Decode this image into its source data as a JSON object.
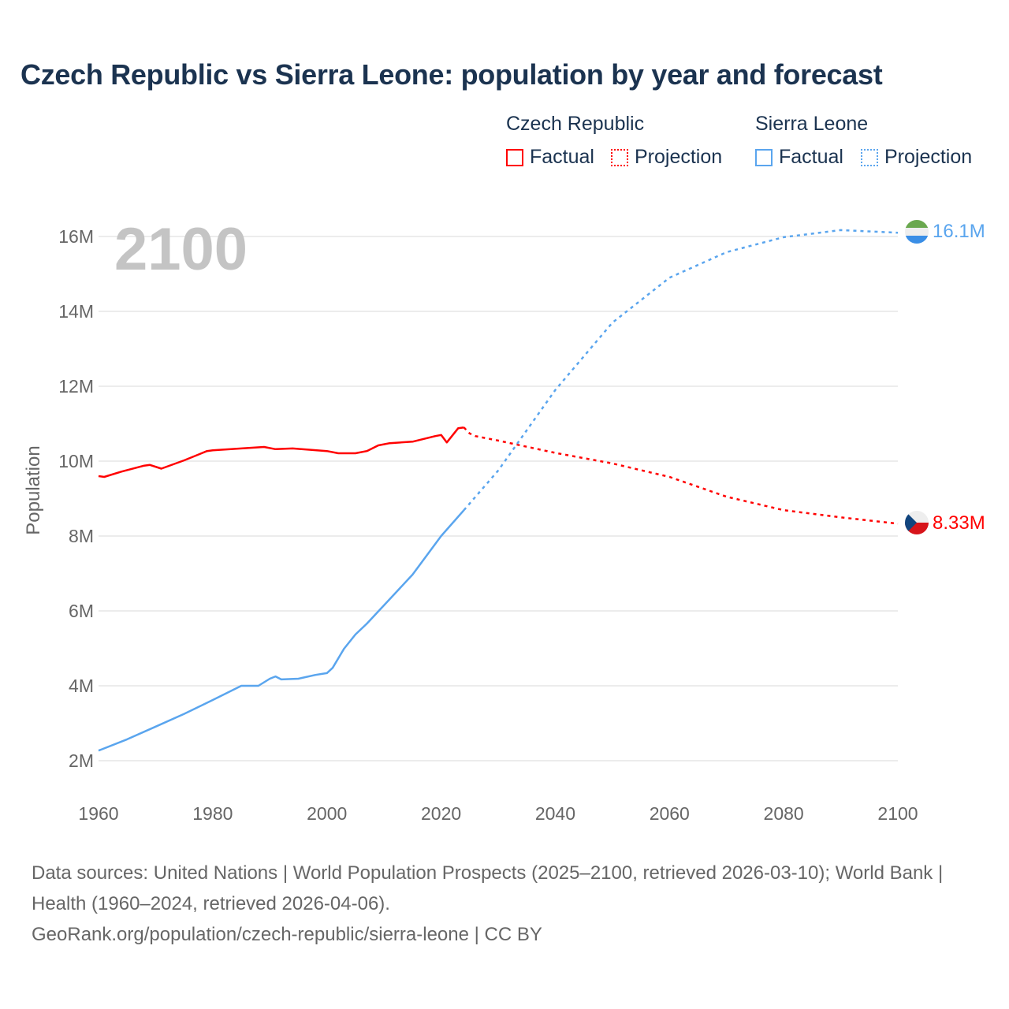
{
  "title": "Czech Republic vs Sierra Leone: population by year and forecast",
  "legend": {
    "groups": [
      {
        "name": "Czech Republic",
        "factual": "Factual",
        "projection": "Projection",
        "color": "#ff0000"
      },
      {
        "name": "Sierra Leone",
        "factual": "Factual",
        "projection": "Projection",
        "color": "#5aa5ee"
      }
    ]
  },
  "year_watermark": "2100",
  "footer": {
    "sources": "Data sources: United Nations | World Population Prospects (2025–2100, retrieved 2026-03-10); World Bank | Health (1960–2024, retrieved 2026-04-06).",
    "link": "GeoRank.org/population/czech-republic/sierra-leone | CC BY"
  },
  "chart_data": {
    "type": "line",
    "title": "Czech Republic vs Sierra Leone: population by year and forecast",
    "xlabel": "",
    "ylabel": "Population",
    "xlim": [
      1960,
      2100
    ],
    "ylim": [
      1.3,
      16.4
    ],
    "x_ticks": [
      1960,
      1980,
      2000,
      2020,
      2040,
      2060,
      2080,
      2100
    ],
    "x_tick_labels": [
      "1960",
      "1980",
      "2000",
      "2020",
      "2040",
      "2060",
      "2080",
      "2100"
    ],
    "y_ticks": [
      2,
      4,
      6,
      8,
      10,
      12,
      14,
      16
    ],
    "y_tick_labels": [
      "2M",
      "4M",
      "6M",
      "8M",
      "10M",
      "12M",
      "14M",
      "16M"
    ],
    "grid": true,
    "legend_position": "top-right",
    "series": [
      {
        "name": "Czech Republic",
        "color": "#ff0000",
        "end_label": "8.33M",
        "factual": {
          "x": [
            1960,
            1961,
            1964,
            1968,
            1969,
            1971,
            1975,
            1979,
            1980,
            1985,
            1989,
            1991,
            1994,
            2000,
            2002,
            2005,
            2007,
            2009,
            2011,
            2015,
            2019,
            2020,
            2021,
            2023,
            2024
          ],
          "y": [
            9.6,
            9.58,
            9.72,
            9.88,
            9.9,
            9.8,
            10.02,
            10.27,
            10.29,
            10.34,
            10.38,
            10.32,
            10.34,
            10.27,
            10.21,
            10.21,
            10.27,
            10.42,
            10.48,
            10.52,
            10.67,
            10.7,
            10.5,
            10.88,
            10.9
          ]
        },
        "projection": {
          "x": [
            2024,
            2025,
            2026,
            2030,
            2040,
            2050,
            2060,
            2070,
            2080,
            2090,
            2100
          ],
          "y": [
            10.9,
            10.74,
            10.67,
            10.55,
            10.22,
            9.94,
            9.58,
            9.05,
            8.69,
            8.5,
            8.33
          ]
        }
      },
      {
        "name": "Sierra Leone",
        "color": "#5aa5ee",
        "end_label": "16.1M",
        "factual": {
          "x": [
            1960,
            1965,
            1970,
            1975,
            1980,
            1985,
            1988,
            1990,
            1991,
            1992,
            1995,
            1998,
            2000,
            2001,
            2003,
            2005,
            2007,
            2010,
            2015,
            2020,
            2024
          ],
          "y": [
            2.27,
            2.57,
            2.91,
            3.25,
            3.62,
            4.0,
            4.0,
            4.19,
            4.25,
            4.17,
            4.19,
            4.29,
            4.34,
            4.48,
            4.99,
            5.37,
            5.66,
            6.15,
            6.97,
            8.0,
            8.69
          ]
        },
        "projection": {
          "x": [
            2024,
            2030,
            2040,
            2050,
            2060,
            2070,
            2080,
            2090,
            2100
          ],
          "y": [
            8.69,
            9.75,
            11.9,
            13.7,
            14.9,
            15.58,
            15.98,
            16.17,
            16.1
          ]
        }
      }
    ]
  }
}
